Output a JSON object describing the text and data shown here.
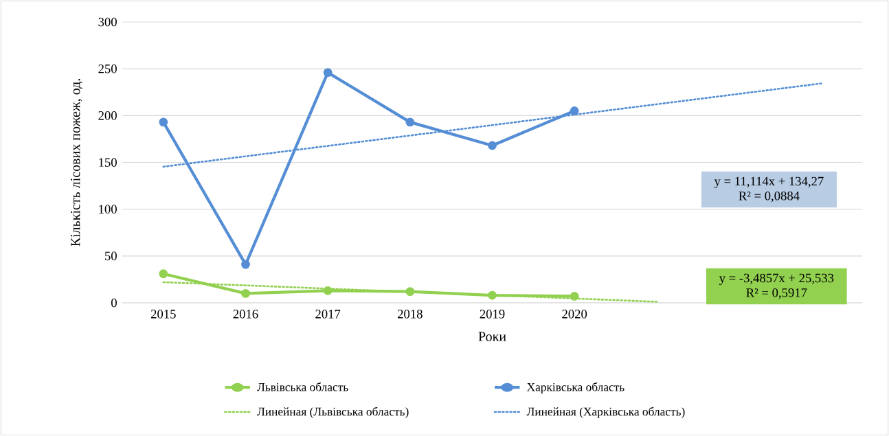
{
  "chart_data": {
    "type": "line",
    "xlabel": "Роки",
    "ylabel": "Кількість лісових пожеж, од.",
    "categories": [
      "2015",
      "2016",
      "2017",
      "2018",
      "2019",
      "2020",
      null,
      null,
      null
    ],
    "series": [
      {
        "name": "Львівська область",
        "color": "#92d050",
        "marker": "circle",
        "line_style": "solid",
        "values": [
          31,
          10,
          13,
          12,
          8,
          7,
          null,
          null,
          null
        ]
      },
      {
        "name": "Харківська область",
        "color": "#558ed5",
        "marker": "circle",
        "line_style": "solid",
        "values": [
          193,
          41,
          246,
          193,
          168,
          205,
          null,
          null,
          null
        ]
      },
      {
        "name": "Линейная (Львівська область)",
        "color": "#92d050",
        "marker": "none",
        "line_style": "dotted",
        "values": [
          22,
          18.6,
          15.1,
          11.6,
          8.1,
          4.6,
          1.1,
          null,
          null
        ]
      },
      {
        "name": "Линейная (Харківська область)",
        "color": "#558ed5",
        "marker": "none",
        "line_style": "dotted",
        "values": [
          145.4,
          156.5,
          167.6,
          178.7,
          189.8,
          201.0,
          212.1,
          223.2,
          234.3
        ]
      }
    ],
    "ylim": [
      0,
      300
    ],
    "yticks": [
      0,
      50,
      100,
      150,
      200,
      250,
      300
    ],
    "grid": "y",
    "legend": "bottom",
    "annotations": [
      "y = 11,114x  + 134,27",
      "R² = 0,0884",
      "y = -3,4857x  + 25,533",
      "R² = 0,5917"
    ]
  }
}
